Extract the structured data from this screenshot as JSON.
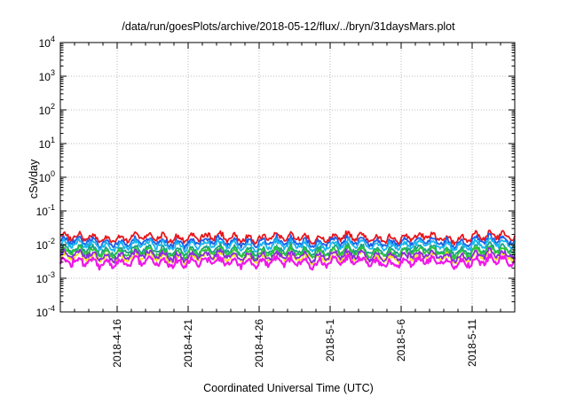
{
  "chart_data": {
    "type": "line",
    "title": "/data/run/goesPlots/archive/2018-05-12/flux/../bryn/31daysMars.plot",
    "xlabel": "Coordinated Universal Time (UTC)",
    "ylabel": "cSv/day",
    "yscale": "log",
    "ylim": [
      0.0001,
      10000
    ],
    "y_ticks": [
      {
        "base": "10",
        "exp": "4"
      },
      {
        "base": "10",
        "exp": "3"
      },
      {
        "base": "10",
        "exp": "2"
      },
      {
        "base": "10",
        "exp": "1"
      },
      {
        "base": "10",
        "exp": "0"
      },
      {
        "base": "10",
        "exp": "-1"
      },
      {
        "base": "10",
        "exp": "-2"
      },
      {
        "base": "10",
        "exp": "-3"
      },
      {
        "base": "10",
        "exp": "-4"
      }
    ],
    "xlim": [
      "2018-04-12",
      "2018-05-14"
    ],
    "x_ticks": [
      "2018-4-16",
      "2018-4-21",
      "2018-4-26",
      "2018-5-1",
      "2018-5-6",
      "2018-5-11"
    ],
    "grid": true,
    "series": [
      {
        "color": "#e8161b",
        "level": 0.016,
        "amp": 0.11
      },
      {
        "color": "#1c5ee8",
        "level": 0.012,
        "amp": 0.1
      },
      {
        "color": "#16b5f0",
        "level": 0.0095,
        "amp": 0.1
      },
      {
        "color": "#1aa086",
        "level": 0.0068,
        "amp": 0.11
      },
      {
        "color": "#2cc43a",
        "level": 0.0058,
        "amp": 0.11
      },
      {
        "color": "#f2e21a",
        "level": 0.0042,
        "amp": 0.12
      },
      {
        "color": "#8a2be2",
        "level": 0.0046,
        "amp": 0.12
      },
      {
        "color": "#f018e8",
        "level": 0.003,
        "amp": 0.15
      }
    ]
  }
}
